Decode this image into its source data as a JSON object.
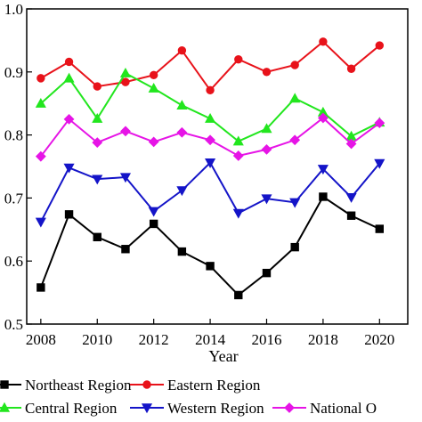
{
  "chart_data": {
    "type": "line",
    "title": "",
    "xlabel": "Year",
    "ylabel": "",
    "x": [
      2008,
      2009,
      2010,
      2011,
      2012,
      2013,
      2014,
      2015,
      2016,
      2017,
      2018,
      2019,
      2020
    ],
    "xlim": [
      2007.5,
      2021
    ],
    "ylim": [
      0.5,
      1.0
    ],
    "x_ticks": [
      "2008",
      "2010",
      "2012",
      "2014",
      "2016",
      "2018",
      "2020"
    ],
    "y_ticks": [
      "0.5",
      "0.6",
      "0.7",
      "0.8",
      "0.9",
      "1.0"
    ],
    "grid": false,
    "legend": {
      "placement": "bottom",
      "entries": [
        "Northeast Region",
        "Eastern Region",
        "Central Region",
        "Western Region",
        "National O"
      ]
    },
    "series": [
      {
        "name": "Northeast Region",
        "color": "#000000",
        "marker": "square",
        "values": [
          0.558,
          0.674,
          0.638,
          0.619,
          0.659,
          0.615,
          0.592,
          0.546,
          0.581,
          0.622,
          0.702,
          0.672,
          0.651
        ]
      },
      {
        "name": "Eastern Region",
        "color": "#e8121a",
        "marker": "circle",
        "values": [
          0.89,
          0.916,
          0.877,
          0.884,
          0.895,
          0.934,
          0.871,
          0.92,
          0.9,
          0.911,
          0.948,
          0.905,
          0.942
        ]
      },
      {
        "name": "Central Region",
        "color": "#22e61e",
        "marker": "triangle-up",
        "values": [
          0.85,
          0.89,
          0.826,
          0.898,
          0.874,
          0.847,
          0.826,
          0.79,
          0.81,
          0.858,
          0.836,
          0.798,
          0.82
        ]
      },
      {
        "name": "Western Region",
        "color": "#1414c8",
        "marker": "triangle-down",
        "values": [
          0.662,
          0.748,
          0.73,
          0.733,
          0.679,
          0.712,
          0.756,
          0.676,
          0.699,
          0.693,
          0.746,
          0.701,
          0.755
        ]
      },
      {
        "name": "National O",
        "color": "#e614e6",
        "marker": "diamond",
        "values": [
          0.766,
          0.825,
          0.788,
          0.806,
          0.789,
          0.804,
          0.792,
          0.767,
          0.777,
          0.792,
          0.827,
          0.786,
          0.819
        ]
      }
    ]
  }
}
